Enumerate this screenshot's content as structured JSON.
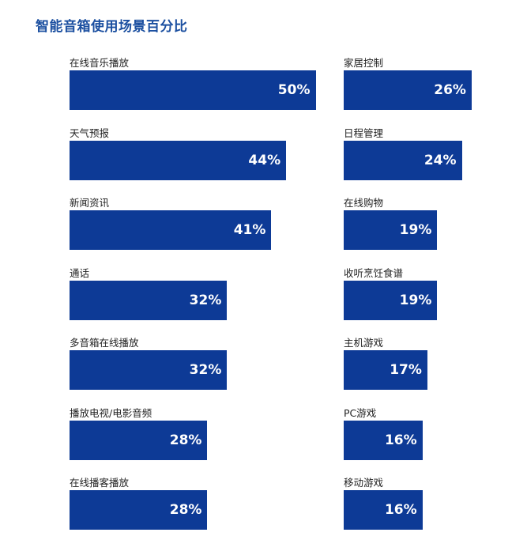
{
  "title": "智能音箱使用场景百分比",
  "colors": {
    "bar": "#0d3a96",
    "title": "#1b4fa0",
    "label": "#222222",
    "value_text": "#ffffff"
  },
  "chart_data": {
    "type": "bar",
    "orientation": "horizontal",
    "title": "智能音箱使用场景百分比",
    "unit": "%",
    "xlim": [
      0,
      50
    ],
    "grid": false,
    "legend": "none",
    "columns": [
      {
        "categories": [
          "在线音乐播放",
          "天气预报",
          "新闻资讯",
          "通话",
          "多音箱在线播放",
          "播放电视/电影音频",
          "在线播客播放"
        ],
        "values": [
          50,
          44,
          41,
          32,
          32,
          28,
          28
        ],
        "labels": [
          "50%",
          "44%",
          "41%",
          "32%",
          "32%",
          "28%",
          "28%"
        ]
      },
      {
        "categories": [
          "家居控制",
          "日程管理",
          "在线购物",
          "收听烹饪食谱",
          "主机游戏",
          "PC游戏",
          "移动游戏"
        ],
        "values": [
          26,
          24,
          19,
          19,
          17,
          16,
          16
        ],
        "labels": [
          "26%",
          "24%",
          "19%",
          "19%",
          "17%",
          "16%",
          "16%"
        ]
      }
    ]
  }
}
